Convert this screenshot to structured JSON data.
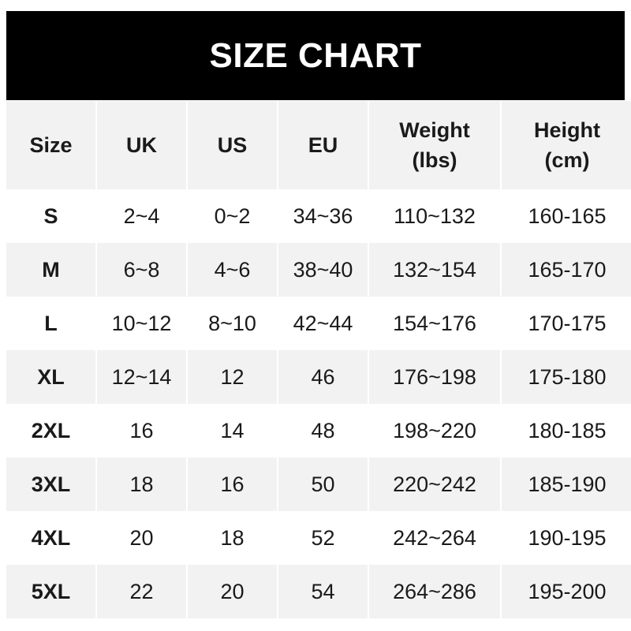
{
  "title": "SIZE CHART",
  "headers": [
    "Size",
    "UK",
    "US",
    "EU",
    "Weight\n(lbs)",
    "Height\n(cm)"
  ],
  "rows": [
    [
      "S",
      "2~4",
      "0~2",
      "34~36",
      "110~132",
      "160-165"
    ],
    [
      "M",
      "6~8",
      "4~6",
      "38~40",
      "132~154",
      "165-170"
    ],
    [
      "L",
      "10~12",
      "8~10",
      "42~44",
      "154~176",
      "170-175"
    ],
    [
      "XL",
      "12~14",
      "12",
      "46",
      "176~198",
      "175-180"
    ],
    [
      "2XL",
      "16",
      "14",
      "48",
      "198~220",
      "180-185"
    ],
    [
      "3XL",
      "18",
      "16",
      "50",
      "220~242",
      "185-190"
    ],
    [
      "4XL",
      "20",
      "18",
      "52",
      "242~264",
      "190-195"
    ],
    [
      "5XL",
      "22",
      "20",
      "54",
      "264~286",
      "195-200"
    ]
  ],
  "colors": {
    "title_bg": "#000000",
    "header_bg": "#f2f2f2",
    "stripe_bg": "#f2f2f2"
  }
}
